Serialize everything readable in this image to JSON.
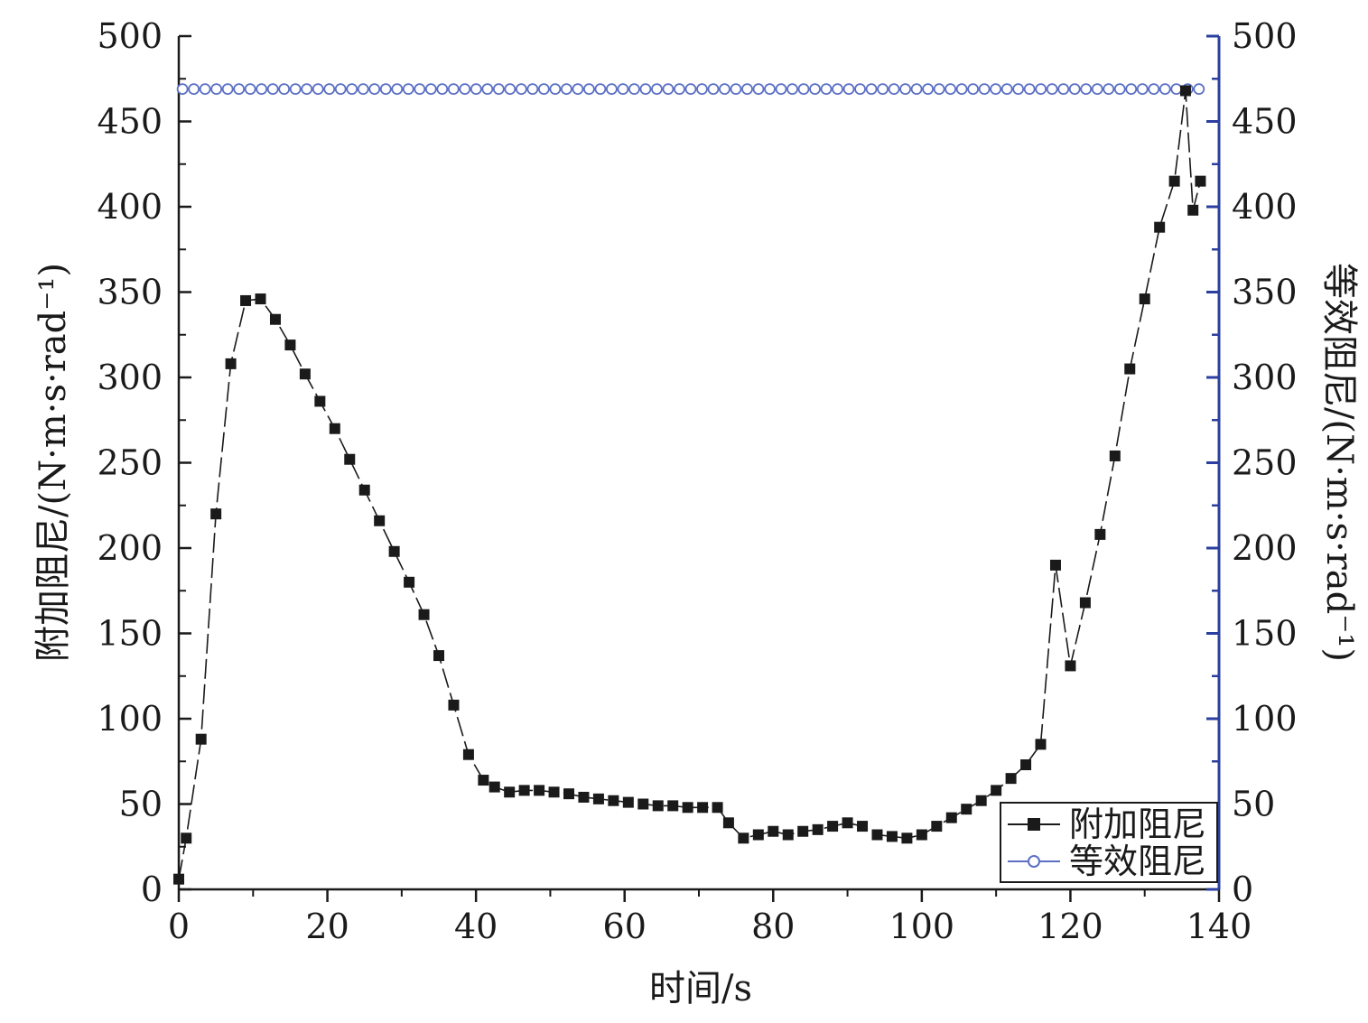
{
  "chart_data": {
    "type": "line",
    "title": "",
    "xlabel": "时间/s",
    "ylabel_left": "附加阻尼/(N·m·s·rad⁻¹)",
    "ylabel_right": "等效阻尼/(N·m·s·rad⁻¹)",
    "xlim": [
      0,
      140
    ],
    "ylim_left": [
      0,
      500
    ],
    "ylim_right": [
      0,
      500
    ],
    "xticks": [
      "0",
      "20",
      "40",
      "60",
      "80",
      "100",
      "120",
      "140"
    ],
    "yticks_left": [
      "0",
      "50",
      "100",
      "150",
      "200",
      "250",
      "300",
      "350",
      "400",
      "450",
      "500"
    ],
    "yticks_right": [
      "0",
      "50",
      "100",
      "150",
      "200",
      "250",
      "300",
      "350",
      "400",
      "450",
      "500"
    ],
    "grid": false,
    "legend_position": "bottom-right",
    "colors": {
      "series1": "#1a1a1a",
      "series2": "#5b6fc4",
      "right_axis": "#2b3f9e",
      "left_axis": "#1a1a1a"
    },
    "series": [
      {
        "name": "附加阻尼",
        "axis": "left",
        "marker": "square",
        "x": [
          0,
          1,
          3,
          5,
          7,
          9,
          11,
          13,
          15,
          17,
          19,
          21,
          23,
          25,
          27,
          29,
          31,
          33,
          35,
          37,
          39,
          41,
          42.5,
          44.5,
          46.5,
          48.5,
          50.5,
          52.5,
          54.5,
          56.5,
          58.5,
          60.5,
          62.5,
          64.5,
          66.5,
          68.5,
          70.5,
          72.5,
          74,
          76,
          78,
          80,
          82,
          84,
          86,
          88,
          90,
          92,
          94,
          96,
          98,
          100,
          102,
          104,
          106,
          108,
          110,
          112,
          114,
          116,
          118,
          120,
          122,
          124,
          126,
          128,
          130,
          132,
          134,
          135.5,
          136.5,
          137.5
        ],
        "values": [
          6,
          30,
          88,
          220,
          308,
          345,
          346,
          334,
          319,
          302,
          286,
          270,
          252,
          234,
          216,
          198,
          180,
          161,
          137,
          108,
          79,
          64,
          60,
          57,
          58,
          58,
          57,
          56,
          54,
          53,
          52,
          51,
          50,
          49,
          49,
          48,
          48,
          48,
          39,
          30,
          32,
          34,
          32,
          34,
          35,
          37,
          39,
          37,
          32,
          31,
          30,
          32,
          37,
          42,
          47,
          52,
          58,
          65,
          73,
          85,
          190,
          131,
          168,
          208,
          254,
          305,
          346,
          388,
          415,
          468,
          398,
          415
        ]
      },
      {
        "name": "等效阻尼",
        "axis": "right",
        "marker": "circle-open",
        "x_start": 0.5,
        "x_step": 1.52,
        "count": 91,
        "value": 469
      }
    ]
  }
}
